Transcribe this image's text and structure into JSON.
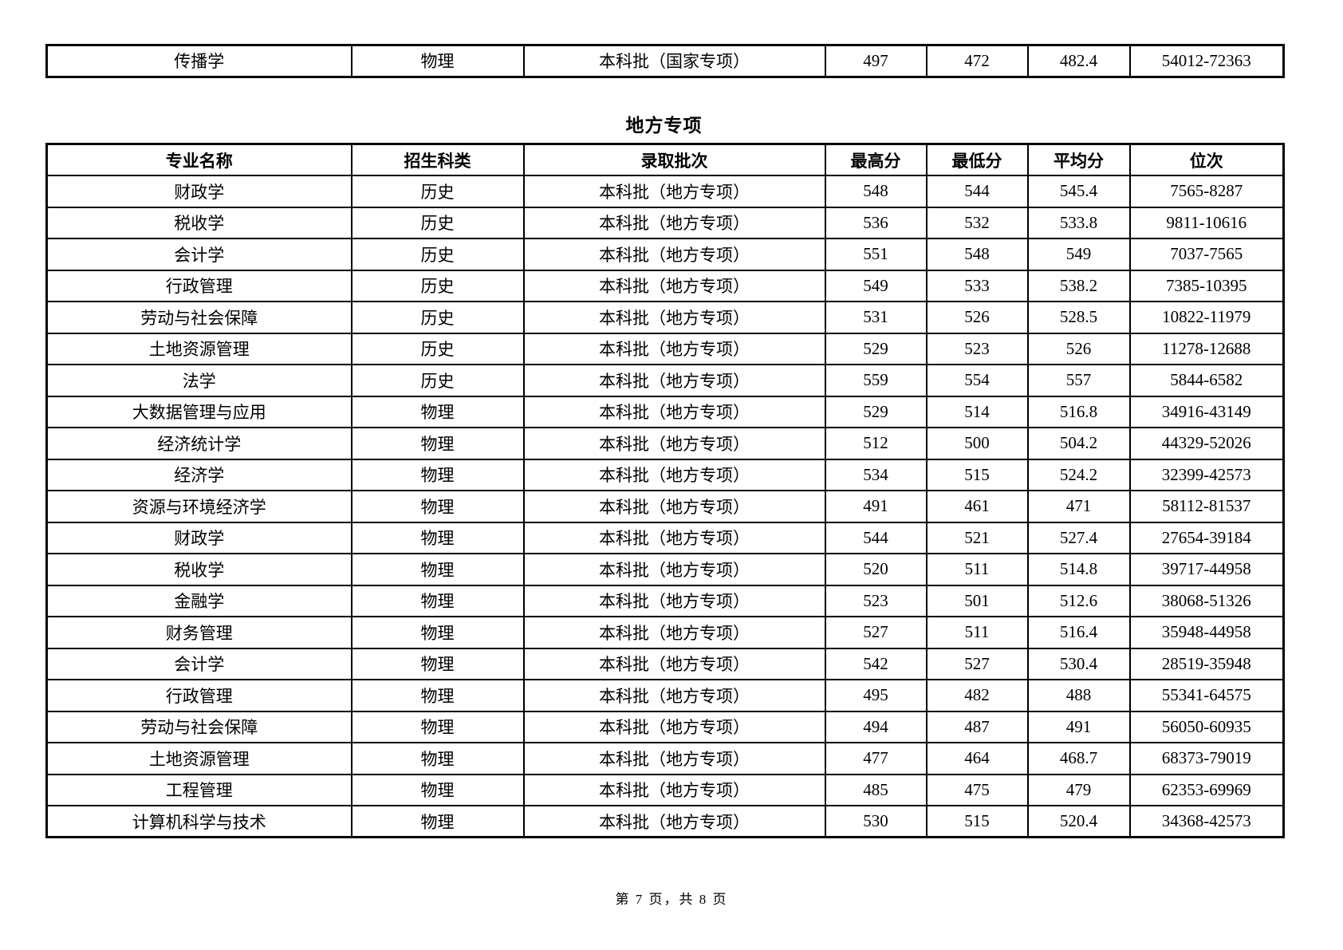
{
  "page": {
    "footer": "第 7 页，共 8 页"
  },
  "continuation_table": {
    "rows": [
      [
        "传播学",
        "物理",
        "本科批（国家专项）",
        "497",
        "472",
        "482.4",
        "54012-72363"
      ]
    ]
  },
  "section": {
    "title": "地方专项"
  },
  "admission_table": {
    "headers": [
      "专业名称",
      "招生科类",
      "录取批次",
      "最高分",
      "最低分",
      "平均分",
      "位次"
    ],
    "rows": [
      [
        "财政学",
        "历史",
        "本科批（地方专项）",
        "548",
        "544",
        "545.4",
        "7565-8287"
      ],
      [
        "税收学",
        "历史",
        "本科批（地方专项）",
        "536",
        "532",
        "533.8",
        "9811-10616"
      ],
      [
        "会计学",
        "历史",
        "本科批（地方专项）",
        "551",
        "548",
        "549",
        "7037-7565"
      ],
      [
        "行政管理",
        "历史",
        "本科批（地方专项）",
        "549",
        "533",
        "538.2",
        "7385-10395"
      ],
      [
        "劳动与社会保障",
        "历史",
        "本科批（地方专项）",
        "531",
        "526",
        "528.5",
        "10822-11979"
      ],
      [
        "土地资源管理",
        "历史",
        "本科批（地方专项）",
        "529",
        "523",
        "526",
        "11278-12688"
      ],
      [
        "法学",
        "历史",
        "本科批（地方专项）",
        "559",
        "554",
        "557",
        "5844-6582"
      ],
      [
        "大数据管理与应用",
        "物理",
        "本科批（地方专项）",
        "529",
        "514",
        "516.8",
        "34916-43149"
      ],
      [
        "经济统计学",
        "物理",
        "本科批（地方专项）",
        "512",
        "500",
        "504.2",
        "44329-52026"
      ],
      [
        "经济学",
        "物理",
        "本科批（地方专项）",
        "534",
        "515",
        "524.2",
        "32399-42573"
      ],
      [
        "资源与环境经济学",
        "物理",
        "本科批（地方专项）",
        "491",
        "461",
        "471",
        "58112-81537"
      ],
      [
        "财政学",
        "物理",
        "本科批（地方专项）",
        "544",
        "521",
        "527.4",
        "27654-39184"
      ],
      [
        "税收学",
        "物理",
        "本科批（地方专项）",
        "520",
        "511",
        "514.8",
        "39717-44958"
      ],
      [
        "金融学",
        "物理",
        "本科批（地方专项）",
        "523",
        "501",
        "512.6",
        "38068-51326"
      ],
      [
        "财务管理",
        "物理",
        "本科批（地方专项）",
        "527",
        "511",
        "516.4",
        "35948-44958"
      ],
      [
        "会计学",
        "物理",
        "本科批（地方专项）",
        "542",
        "527",
        "530.4",
        "28519-35948"
      ],
      [
        "行政管理",
        "物理",
        "本科批（地方专项）",
        "495",
        "482",
        "488",
        "55341-64575"
      ],
      [
        "劳动与社会保障",
        "物理",
        "本科批（地方专项）",
        "494",
        "487",
        "491",
        "56050-60935"
      ],
      [
        "土地资源管理",
        "物理",
        "本科批（地方专项）",
        "477",
        "464",
        "468.7",
        "68373-79019"
      ],
      [
        "工程管理",
        "物理",
        "本科批（地方专项）",
        "485",
        "475",
        "479",
        "62353-69969"
      ],
      [
        "计算机科学与技术",
        "物理",
        "本科批（地方专项）",
        "530",
        "515",
        "520.4",
        "34368-42573"
      ]
    ]
  }
}
